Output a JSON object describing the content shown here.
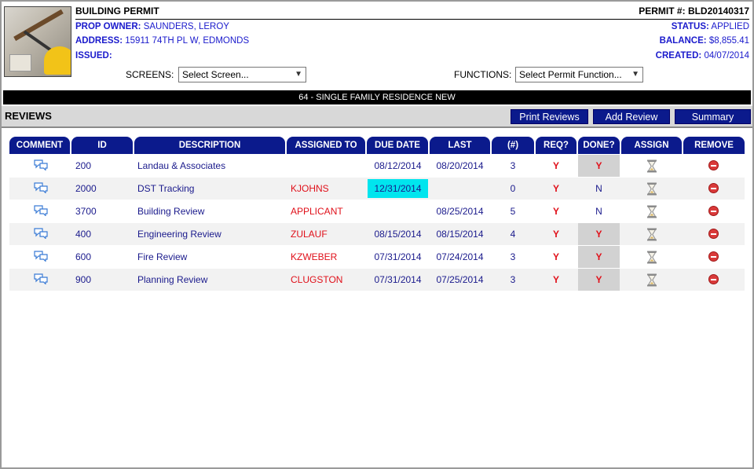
{
  "permit": {
    "title": "BUILDING PERMIT",
    "number_label": "PERMIT #:",
    "number": "BLD20140317",
    "prop_owner_label": "PROP OWNER:",
    "prop_owner": "SAUNDERS, LEROY",
    "address_label": "ADDRESS:",
    "address": "15911 74TH PL W, EDMONDS",
    "issued_label": "ISSUED:",
    "issued": "",
    "status_label": "STATUS:",
    "status": "APPLIED",
    "balance_label": "BALANCE:",
    "balance": "$8,855.41",
    "created_label": "CREATED:",
    "created": "04/07/2014"
  },
  "controls": {
    "screens_label": "SCREENS:",
    "screens_value": "Select Screen...",
    "functions_label": "FUNCTIONS:",
    "functions_value": "Select Permit Function..."
  },
  "banner": "64 - SINGLE FAMILY RESIDENCE NEW",
  "reviews": {
    "title": "REVIEWS",
    "buttons": {
      "print": "Print Reviews",
      "add": "Add Review",
      "summary": "Summary"
    },
    "columns": [
      "COMMENT",
      "ID",
      "DESCRIPTION",
      "ASSIGNED TO",
      "DUE DATE",
      "LAST",
      "(#)",
      "REQ?",
      "DONE?",
      "ASSIGN",
      "REMOVE"
    ],
    "rows": [
      {
        "id": "200",
        "description": "Landau & Associates",
        "assigned_to": "",
        "due_date": "08/12/2014",
        "last": "08/20/2014",
        "count": "3",
        "req": "Y",
        "done": "Y"
      },
      {
        "id": "2000",
        "description": "DST Tracking",
        "assigned_to": "KJOHNS",
        "due_date": "12/31/2014",
        "last": "",
        "count": "0",
        "req": "Y",
        "done": "N"
      },
      {
        "id": "3700",
        "description": "Building Review",
        "assigned_to": "APPLICANT",
        "due_date": "",
        "last": "08/25/2014",
        "count": "5",
        "req": "Y",
        "done": "N"
      },
      {
        "id": "400",
        "description": "Engineering Review",
        "assigned_to": "ZULAUF",
        "due_date": "08/15/2014",
        "last": "08/15/2014",
        "count": "4",
        "req": "Y",
        "done": "Y"
      },
      {
        "id": "600",
        "description": "Fire Review",
        "assigned_to": "KZWEBER",
        "due_date": "07/31/2014",
        "last": "07/24/2014",
        "count": "3",
        "req": "Y",
        "done": "Y"
      },
      {
        "id": "900",
        "description": "Planning Review",
        "assigned_to": "CLUGSTON",
        "due_date": "07/31/2014",
        "last": "07/25/2014",
        "count": "3",
        "req": "Y",
        "done": "Y"
      }
    ]
  },
  "colors": {
    "header_navy": "#0b1a8c",
    "due_highlight": "#00e5ee",
    "done_highlight": "#d2d2d2",
    "flag_red": "#e0101a"
  },
  "icons": {
    "comment": "speech-bubbles-icon",
    "assign": "hourglass-icon",
    "remove": "remove-circle-icon"
  }
}
